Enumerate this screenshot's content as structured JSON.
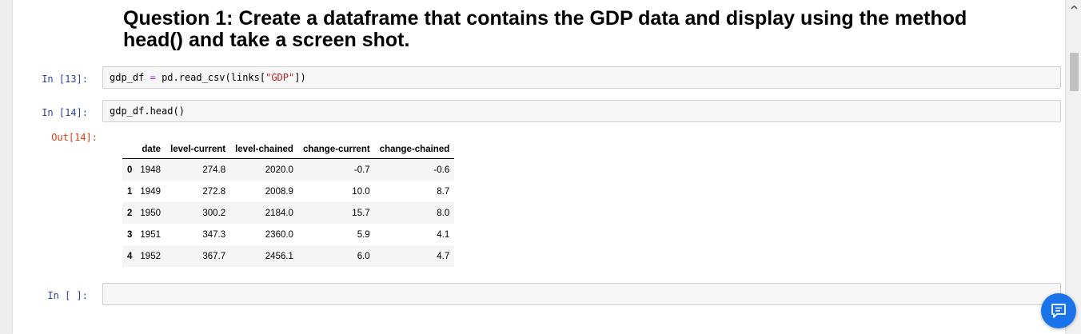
{
  "heading": {
    "line1": "Question 1: Create a dataframe that contains the GDP data and display using the method",
    "line2": "head() and take a screen shot."
  },
  "cells": [
    {
      "prompt": "In [13]:",
      "code": {
        "var": "gdp_df",
        "op": "=",
        "call": "pd.read_csv(links[",
        "str": "\"GDP\"",
        "close": "])"
      }
    },
    {
      "prompt": "In [14]:",
      "code_text": "gdp_df.head()",
      "output_prompt": "Out[14]:"
    },
    {
      "prompt": "In [ ]:",
      "code_text": ""
    }
  ],
  "dataframe": {
    "columns": [
      "",
      "date",
      "level-current",
      "level-chained",
      "change-current",
      "change-chained"
    ],
    "rows": [
      {
        "index": "0",
        "date": "1948",
        "level_current": "274.8",
        "level_chained": "2020.0",
        "change_current": "-0.7",
        "change_chained": "-0.6"
      },
      {
        "index": "1",
        "date": "1949",
        "level_current": "272.8",
        "level_chained": "2008.9",
        "change_current": "10.0",
        "change_chained": "8.7"
      },
      {
        "index": "2",
        "date": "1950",
        "level_current": "300.2",
        "level_chained": "2184.0",
        "change_current": "15.7",
        "change_chained": "8.0"
      },
      {
        "index": "3",
        "date": "1951",
        "level_current": "347.3",
        "level_chained": "2360.0",
        "change_current": "5.9",
        "change_chained": "4.1"
      },
      {
        "index": "4",
        "date": "1952",
        "level_current": "367.7",
        "level_chained": "2456.1",
        "change_current": "6.0",
        "change_chained": "4.7"
      }
    ]
  },
  "icons": {
    "scroll_up": "chevron-up-icon",
    "chat": "chat-icon"
  },
  "colors": {
    "prompt_in": "#303f9f",
    "prompt_out": "#d84315",
    "chat_button": "#1a73e8"
  }
}
